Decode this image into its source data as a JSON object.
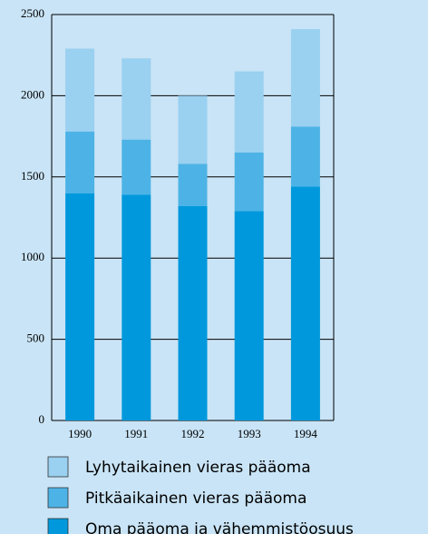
{
  "chart_data": {
    "type": "stacked_bar",
    "categories": [
      "1990",
      "1991",
      "1992",
      "1993",
      "1994"
    ],
    "series": [
      {
        "name": "Oma pääoma ja vähemmistöosuus",
        "color": "#0098dc",
        "values": [
          1400,
          1390,
          1320,
          1290,
          1440
        ]
      },
      {
        "name": "Pitkäaikainen vieras pääoma",
        "color": "#4db3e6",
        "values": [
          380,
          340,
          260,
          360,
          370
        ]
      },
      {
        "name": "Lyhytaikainen vieras pääoma",
        "color": "#9ad0f0",
        "values": [
          510,
          500,
          420,
          500,
          600
        ]
      }
    ],
    "ylim": [
      0,
      2500
    ],
    "yticks": [
      0,
      500,
      1000,
      1500,
      2000,
      2500
    ],
    "grid": true
  }
}
